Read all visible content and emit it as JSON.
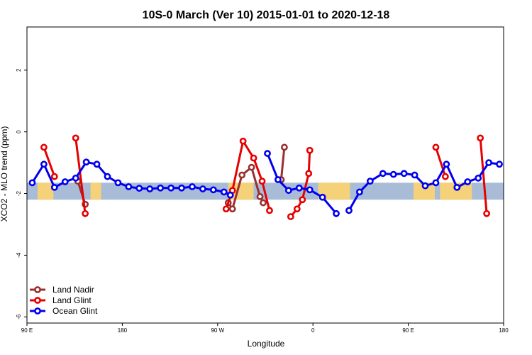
{
  "chart_data": {
    "type": "line",
    "title": "10S-0 March (Ver 10)   2015-01-01 to 2020-12-18",
    "xlabel": "Longitude",
    "ylabel": "XCO2 - MLO trend (ppm)",
    "xlim": [
      90,
      540
    ],
    "ylim": [
      -6.2,
      3.4
    ],
    "x_ticks": [
      {
        "value": 90,
        "label": "90 E"
      },
      {
        "value": 180,
        "label": "180"
      },
      {
        "value": 270,
        "label": "90 W"
      },
      {
        "value": 360,
        "label": "0"
      },
      {
        "value": 450,
        "label": "90 E"
      },
      {
        "value": 540,
        "label": "180"
      }
    ],
    "y_ticks": [
      {
        "value": 2,
        "label": "2"
      },
      {
        "value": 0,
        "label": "0"
      },
      {
        "value": -2,
        "label": "-2"
      },
      {
        "value": -4,
        "label": "-4"
      },
      {
        "value": -6,
        "label": "-6"
      }
    ],
    "grid": false,
    "legend_position": "bottom-left",
    "band": {
      "ymin": -2.2,
      "ymax": -1.65,
      "ocean_color": "#a8bcd8",
      "land_color": "#f5d27a"
    },
    "land_segments": [
      [
        100,
        115
      ],
      [
        150,
        160
      ],
      [
        280,
        304
      ],
      [
        365,
        395
      ],
      [
        455,
        475
      ],
      [
        480,
        510
      ],
      [
        372,
        392
      ]
    ],
    "series": [
      {
        "name": "Land Nadir",
        "color": "#9a2f2f",
        "x": [
          138,
          145,
          280,
          284,
          293,
          302,
          310,
          313,
          330,
          333
        ],
        "y": [
          -1.6,
          -2.35,
          -2.3,
          -2.5,
          -1.4,
          -1.15,
          -2.1,
          -2.3,
          -1.55,
          -0.5
        ],
        "segments": [
          [
            0,
            1
          ],
          [
            2,
            3,
            4,
            5,
            6,
            7
          ],
          [
            8,
            9
          ]
        ]
      },
      {
        "name": "Land Glint",
        "color": "#e60000",
        "x": [
          106,
          116,
          136,
          145,
          278,
          284,
          294,
          304,
          312,
          319,
          339,
          345,
          350,
          356,
          357,
          476,
          485,
          518,
          524
        ],
        "y": [
          -0.5,
          -1.45,
          -0.2,
          -2.65,
          -2.5,
          -1.9,
          -0.3,
          -0.85,
          -1.6,
          -2.55,
          -2.75,
          -2.5,
          -2.2,
          -1.35,
          -0.6,
          -0.5,
          -1.45,
          -0.2,
          -2.65
        ],
        "segments": [
          [
            0,
            1
          ],
          [
            2,
            3
          ],
          [
            4,
            5,
            6,
            7,
            8,
            9
          ],
          [
            10,
            11,
            12,
            13,
            14
          ],
          [
            15,
            16
          ],
          [
            17,
            18
          ]
        ]
      },
      {
        "name": "Ocean Glint",
        "color": "#0000ee",
        "x": [
          95,
          106,
          116,
          126,
          136,
          146,
          156,
          166,
          176,
          186,
          196,
          206,
          216,
          226,
          236,
          246,
          256,
          266,
          276,
          282,
          317,
          327,
          337,
          347,
          357,
          369,
          382,
          394,
          404,
          414,
          426,
          436,
          446,
          456,
          466,
          476,
          486,
          496,
          506,
          516,
          526,
          536
        ],
        "y": [
          -1.65,
          -1.05,
          -1.8,
          -1.62,
          -1.5,
          -0.98,
          -1.05,
          -1.45,
          -1.65,
          -1.78,
          -1.83,
          -1.85,
          -1.82,
          -1.82,
          -1.82,
          -1.78,
          -1.85,
          -1.88,
          -1.95,
          -2.05,
          -0.7,
          -1.55,
          -1.9,
          -1.82,
          -1.88,
          -2.12,
          -2.65,
          -2.55,
          -1.95,
          -1.6,
          -1.35,
          -1.38,
          -1.35,
          -1.4,
          -1.75,
          -1.65,
          -1.05,
          -1.8,
          -1.62,
          -1.5,
          -1.0,
          -1.05
        ],
        "segments": [
          [
            0,
            1,
            2,
            3,
            4,
            5,
            6,
            7,
            8,
            9,
            10,
            11,
            12,
            13,
            14,
            15,
            16,
            17,
            18,
            19
          ],
          [
            20,
            21,
            22,
            23,
            24,
            25,
            26
          ],
          [
            27,
            28,
            29,
            30,
            31,
            32,
            33,
            34,
            35,
            36,
            37,
            38,
            39,
            40,
            41
          ]
        ]
      }
    ]
  }
}
